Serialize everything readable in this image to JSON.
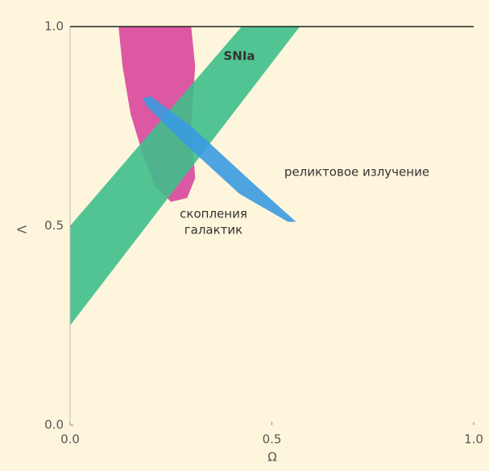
{
  "chart_data": {
    "type": "region",
    "x_label": "Ω",
    "y_label": "Λ",
    "xlim": [
      0,
      1
    ],
    "ylim": [
      0,
      1
    ],
    "xticks": [
      {
        "value": 0,
        "label": "0.0"
      },
      {
        "value": 0.5,
        "label": "0.5"
      },
      {
        "value": 1,
        "label": "1.0"
      }
    ],
    "yticks": [
      {
        "value": 0,
        "label": "0.0"
      },
      {
        "value": 0.5,
        "label": "0.5"
      },
      {
        "value": 1,
        "label": "1.0"
      }
    ],
    "series": [
      {
        "color": "#d9479b",
        "x": [
          0.12,
          0.3,
          0.31,
          0.3,
          0.31,
          0.29,
          0.25,
          0.21,
          0.18,
          0.15,
          0.13
        ],
        "y": [
          1.0,
          1.0,
          0.9,
          0.75,
          0.62,
          0.57,
          0.56,
          0.6,
          0.68,
          0.78,
          0.9
        ]
      },
      {
        "color": "#3fbf8c",
        "x": [
          0,
          0,
          0.425,
          0.569
        ],
        "y": [
          0.25,
          0.5,
          1.0,
          1.0
        ]
      },
      {
        "color": "#3a9be0",
        "x": [
          0.18,
          0.2,
          0.3,
          0.45,
          0.56,
          0.54,
          0.42,
          0.28,
          0.19
        ],
        "y": [
          0.82,
          0.825,
          0.75,
          0.61,
          0.51,
          0.51,
          0.58,
          0.71,
          0.8
        ]
      }
    ],
    "annotations": [
      "SNIa",
      "реликтовое излучение",
      "скопления",
      "галактик"
    ]
  }
}
